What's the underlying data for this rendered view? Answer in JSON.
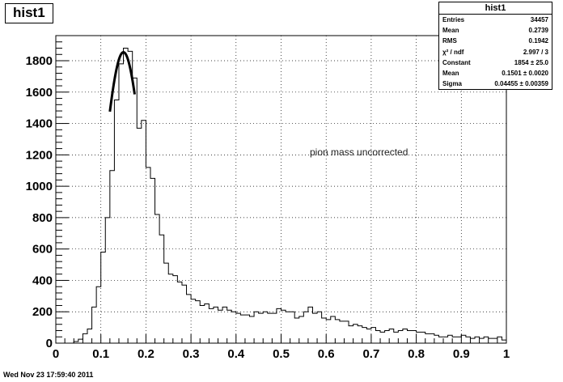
{
  "chart_data": {
    "type": "bar",
    "title": "hist1",
    "xlabel": "",
    "ylabel": "",
    "xlim": [
      0,
      1
    ],
    "ylim": [
      0,
      1960
    ],
    "grid": true,
    "x_ticks": [
      "0",
      "0.1",
      "0.2",
      "0.3",
      "0.4",
      "0.5",
      "0.6",
      "0.7",
      "0.8",
      "0.9",
      "1"
    ],
    "y_ticks": [
      "0",
      "200",
      "400",
      "600",
      "800",
      "1000",
      "1200",
      "1400",
      "1600",
      "1800"
    ],
    "bin_width": 0.01,
    "x_start": 0,
    "values": [
      0,
      0,
      0,
      0,
      10,
      25,
      60,
      90,
      230,
      360,
      580,
      800,
      1100,
      1550,
      1780,
      1880,
      1860,
      1690,
      1370,
      1420,
      1120,
      1050,
      820,
      690,
      510,
      440,
      430,
      390,
      370,
      310,
      280,
      270,
      240,
      250,
      220,
      230,
      210,
      230,
      210,
      200,
      190,
      180,
      180,
      170,
      200,
      190,
      200,
      190,
      190,
      220,
      210,
      200,
      200,
      160,
      170,
      200,
      230,
      190,
      200,
      160,
      150,
      170,
      150,
      140,
      140,
      110,
      120,
      110,
      100,
      90,
      100,
      80,
      70,
      80,
      90,
      70,
      80,
      90,
      80,
      80,
      70,
      70,
      60,
      60,
      50,
      40,
      40,
      50,
      40,
      40,
      50,
      40,
      30,
      40,
      30,
      40,
      30,
      30,
      40,
      20
    ],
    "fit": {
      "function": "gaus",
      "constant": 1854,
      "mean": 0.1501,
      "sigma": 0.04455,
      "range": [
        0.12,
        0.175
      ]
    },
    "annotation": "pion mass uncorrected"
  },
  "stats": {
    "title": "hist1",
    "rows": [
      {
        "label": "Entries",
        "value": "34457"
      },
      {
        "label": "Mean",
        "value": "0.2739"
      },
      {
        "label": "RMS",
        "value": "0.1942"
      },
      {
        "label": "χ² / ndf",
        "value": "2.997 / 3"
      },
      {
        "label": "Constant",
        "value": "1854 ± 25.0"
      },
      {
        "label": "Mean",
        "value": "0.1501 ± 0.0020"
      },
      {
        "label": "Sigma",
        "value": "0.04455 ± 0.00359"
      }
    ]
  },
  "footer": "Wed Nov 23 17:59:40 2011"
}
